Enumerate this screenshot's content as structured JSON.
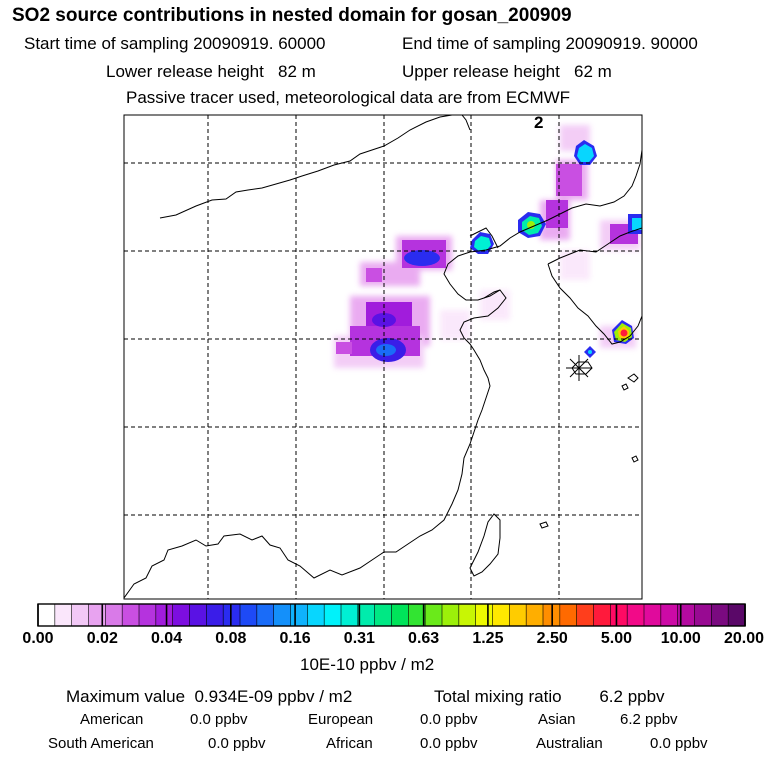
{
  "title": "SO2 source contributions in nested domain for gosan_200909",
  "sampling": {
    "start": "Start time of sampling 20090919. 60000",
    "end": "End time of sampling 20090919. 90000"
  },
  "release": {
    "lower": "Lower release height   82 m",
    "upper": "Upper release height   62 m"
  },
  "tracer_note": "Passive tracer used, meteorological data are from ECMWF",
  "panel_label": "2",
  "colorbar": {
    "unit": "10E-10 ppbv / m2",
    "tick_labels": [
      "0.00",
      "0.02",
      "0.04",
      "0.08",
      "0.16",
      "0.31",
      "0.63",
      "1.25",
      "2.50",
      "5.00",
      "10.00",
      "20.00"
    ],
    "colors": [
      "#ffffff",
      "#fae6fb",
      "#f2c8f6",
      "#e8a3f0",
      "#d97ae8",
      "#c94fe2",
      "#b533de",
      "#a11cdc",
      "#7d0ee0",
      "#5a12e4",
      "#3a1de8",
      "#2a2cf0",
      "#1e4af6",
      "#1a6cf8",
      "#1490fa",
      "#0fb2fc",
      "#08d6fe",
      "#00f2fa",
      "#00f0d4",
      "#00ecac",
      "#00e884",
      "#00e45a",
      "#32e432",
      "#6aea1a",
      "#9cf00a",
      "#c8f604",
      "#eefa00",
      "#ffe800",
      "#ffcc00",
      "#ffae00",
      "#ff8e00",
      "#ff6a00",
      "#ff3e1c",
      "#ff1a3c",
      "#ff0a64",
      "#f20a88",
      "#e00a9c",
      "#cc0aa6",
      "#b30aa0",
      "#980a92",
      "#7a0a80",
      "#5a0868"
    ]
  },
  "stats": {
    "maximum": "Maximum value  0.934E-09 ppbv / m2",
    "total": "Total mixing ratio        6.2 ppbv",
    "american_label": "American",
    "american_value": "0.0 ppbv",
    "european_label": "European",
    "european_value": "0.0 ppbv",
    "asian_label": "Asian",
    "asian_value": "6.2 ppbv",
    "south_american_label": "South American",
    "south_american_value": "0.0 ppbv",
    "african_label": "African",
    "african_value": "0.0 ppbv",
    "australian_label": "Australian",
    "australian_value": "0.0 ppbv"
  }
}
